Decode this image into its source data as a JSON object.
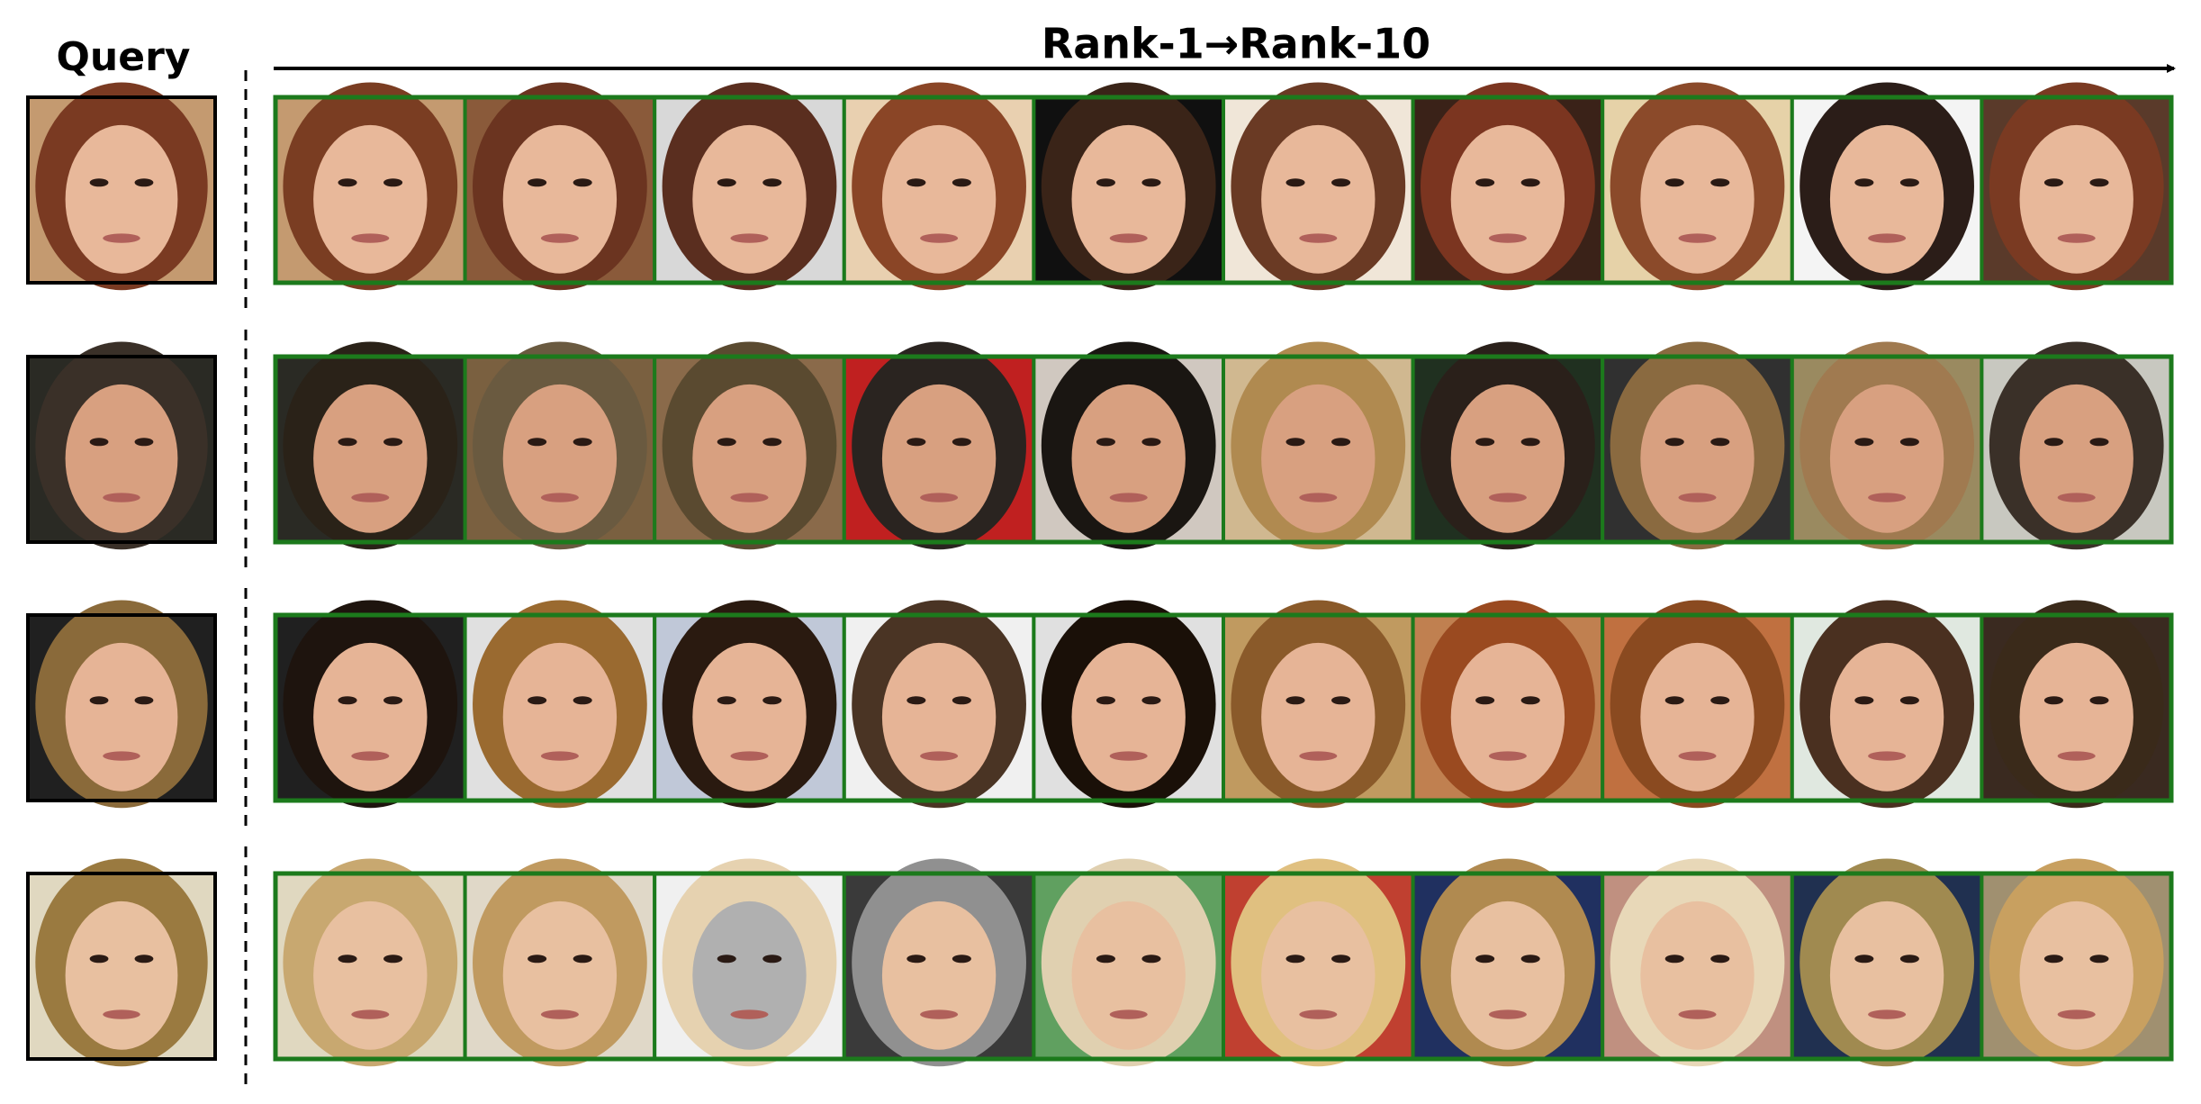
{
  "header": {
    "query_label": "Query",
    "rank_label": "Rank-1→Rank-10"
  }
}
